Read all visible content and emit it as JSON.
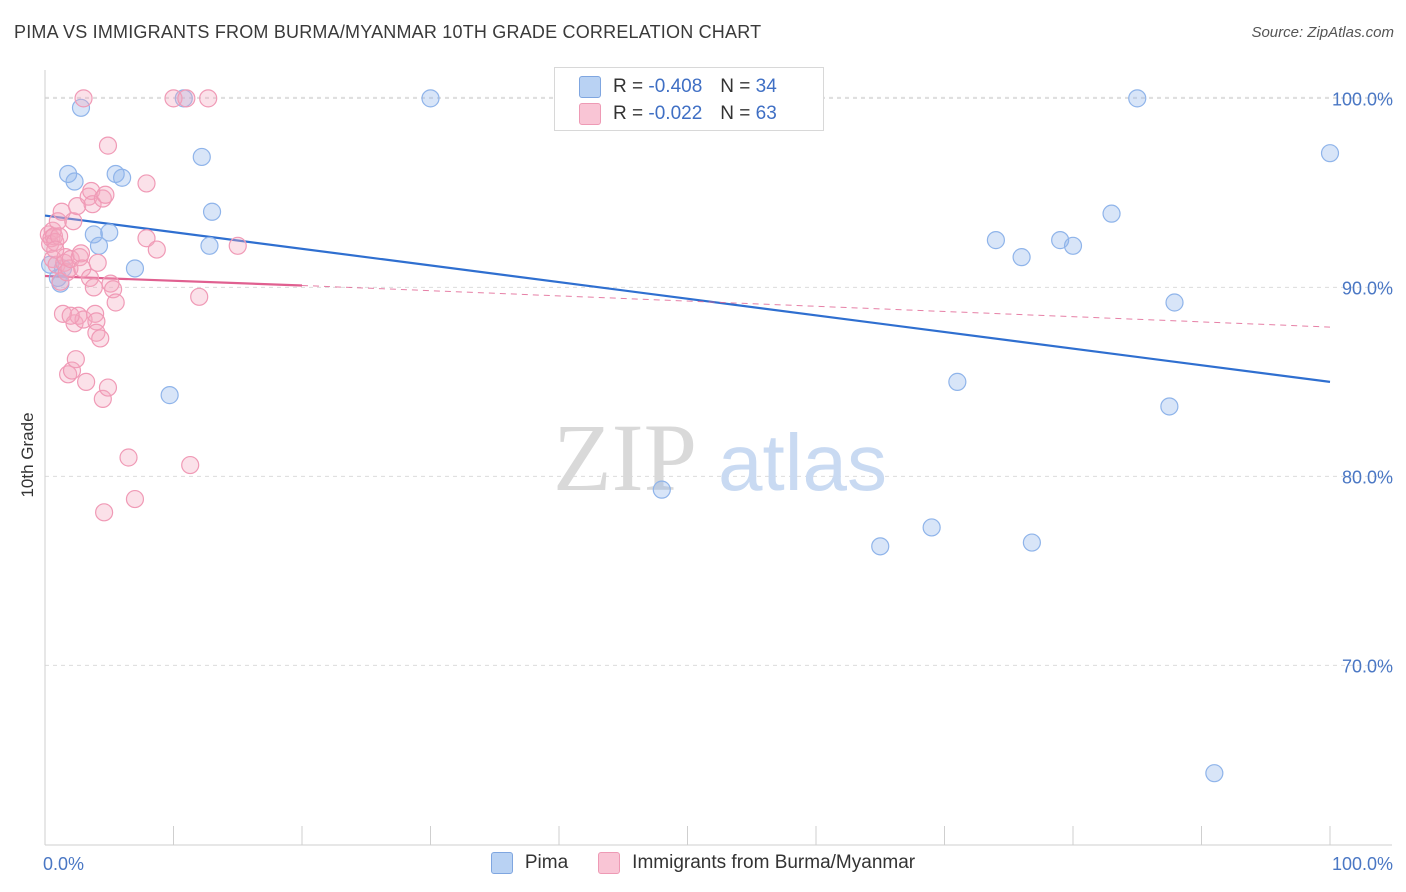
{
  "title": "PIMA VS IMMIGRANTS FROM BURMA/MYANMAR 10TH GRADE CORRELATION CHART",
  "source": "Source: ZipAtlas.com",
  "watermark": {
    "zip": "ZIP",
    "atlas": "atlas"
  },
  "legend": {
    "series1": {
      "r_label": "R =",
      "r_value": "-0.408",
      "n_label": "N =",
      "n_value": "34"
    },
    "series2": {
      "r_label": "R =",
      "r_value": "-0.022",
      "n_label": "N =",
      "n_value": "63"
    }
  },
  "chart_data": {
    "type": "scatter",
    "title": "PIMA VS IMMIGRANTS FROM BURMA/MYANMAR 10TH GRADE CORRELATION CHART",
    "xlabel": "",
    "ylabel": "10th Grade",
    "xlim": [
      0,
      100
    ],
    "ylim": [
      60.5,
      101.5
    ],
    "x_tick_labels": [
      "0.0%",
      "100.0%"
    ],
    "y_ticks": [
      70,
      80,
      90,
      100
    ],
    "y_tick_labels": [
      "70.0%",
      "80.0%",
      "90.0%",
      "100.0%"
    ],
    "series": [
      {
        "name": "Pima",
        "color": "#8fb4ea",
        "line_color": "#2f6fd0",
        "trend": {
          "x": [
            0,
            100
          ],
          "y": [
            93.8,
            85.0
          ],
          "style": "solid"
        },
        "points": [
          [
            0.4,
            91.2
          ],
          [
            1.0,
            90.5
          ],
          [
            1.2,
            90.2
          ],
          [
            1.4,
            91.0
          ],
          [
            1.8,
            96.0
          ],
          [
            2.3,
            95.6
          ],
          [
            2.8,
            99.5
          ],
          [
            3.8,
            92.8
          ],
          [
            4.2,
            92.2
          ],
          [
            5.0,
            92.9
          ],
          [
            5.5,
            96.0
          ],
          [
            6.0,
            95.8
          ],
          [
            7.0,
            91.0
          ],
          [
            9.7,
            84.3
          ],
          [
            10.8,
            100.0
          ],
          [
            12.2,
            96.9
          ],
          [
            12.8,
            92.2
          ],
          [
            13.0,
            94.0
          ],
          [
            30.0,
            100.0
          ],
          [
            48.0,
            79.3
          ],
          [
            65.0,
            76.3
          ],
          [
            69.0,
            77.3
          ],
          [
            71.0,
            85.0
          ],
          [
            74.0,
            92.5
          ],
          [
            76.0,
            91.6
          ],
          [
            76.8,
            76.5
          ],
          [
            79.0,
            92.5
          ],
          [
            80.0,
            92.2
          ],
          [
            83.0,
            93.9
          ],
          [
            85.0,
            100.0
          ],
          [
            87.5,
            83.7
          ],
          [
            87.9,
            89.2
          ],
          [
            91.0,
            64.3
          ],
          [
            100.0,
            97.1
          ]
        ]
      },
      {
        "name": "Immigrants from Burma/Myanmar",
        "color": "#f4a8c0",
        "line_color": "#e06090",
        "trend": {
          "x": [
            0,
            20
          ],
          "y": [
            90.6,
            90.1
          ],
          "style": "solid",
          "extended": {
            "x": [
              20,
              100
            ],
            "y": [
              90.1,
              87.9
            ],
            "style": "dashed"
          }
        },
        "points": [
          [
            0.3,
            92.8
          ],
          [
            0.4,
            92.3
          ],
          [
            0.5,
            92.6
          ],
          [
            0.6,
            93.0
          ],
          [
            0.6,
            91.5
          ],
          [
            0.7,
            92.7
          ],
          [
            0.8,
            92.4
          ],
          [
            0.9,
            91.2
          ],
          [
            1.0,
            93.5
          ],
          [
            1.1,
            92.7
          ],
          [
            1.2,
            90.3
          ],
          [
            1.3,
            94.0
          ],
          [
            1.4,
            88.6
          ],
          [
            1.5,
            91.3
          ],
          [
            1.6,
            91.6
          ],
          [
            1.7,
            90.8
          ],
          [
            1.8,
            85.4
          ],
          [
            1.9,
            91.0
          ],
          [
            2.0,
            91.5
          ],
          [
            2.1,
            85.6
          ],
          [
            2.2,
            93.5
          ],
          [
            2.3,
            88.1
          ],
          [
            2.4,
            86.2
          ],
          [
            2.5,
            94.3
          ],
          [
            2.6,
            88.5
          ],
          [
            2.7,
            91.6
          ],
          [
            2.8,
            91.8
          ],
          [
            2.9,
            91.0
          ],
          [
            3.0,
            88.3
          ],
          [
            3.0,
            100.0
          ],
          [
            3.2,
            85.0
          ],
          [
            3.4,
            94.8
          ],
          [
            3.5,
            90.5
          ],
          [
            3.6,
            95.1
          ],
          [
            3.7,
            94.4
          ],
          [
            3.8,
            90.0
          ],
          [
            3.9,
            88.6
          ],
          [
            4.0,
            88.2
          ],
          [
            4.0,
            87.6
          ],
          [
            4.1,
            91.3
          ],
          [
            4.3,
            87.3
          ],
          [
            4.5,
            94.7
          ],
          [
            4.5,
            84.1
          ],
          [
            4.6,
            78.1
          ],
          [
            4.7,
            94.9
          ],
          [
            4.9,
            84.7
          ],
          [
            4.9,
            97.5
          ],
          [
            5.1,
            90.2
          ],
          [
            5.3,
            89.9
          ],
          [
            5.5,
            89.2
          ],
          [
            6.5,
            81.0
          ],
          [
            7.0,
            78.8
          ],
          [
            7.9,
            95.5
          ],
          [
            7.9,
            92.6
          ],
          [
            8.7,
            92.0
          ],
          [
            10.0,
            100.0
          ],
          [
            11.0,
            100.0
          ],
          [
            11.3,
            80.6
          ],
          [
            12.0,
            89.5
          ],
          [
            12.7,
            100.0
          ],
          [
            15.0,
            92.2
          ],
          [
            0.8,
            92.0
          ],
          [
            2.0,
            88.5
          ]
        ]
      }
    ]
  },
  "bottom_legend": {
    "series1_label": "Pima",
    "series2_label": "Immigrants from Burma/Myanmar"
  }
}
